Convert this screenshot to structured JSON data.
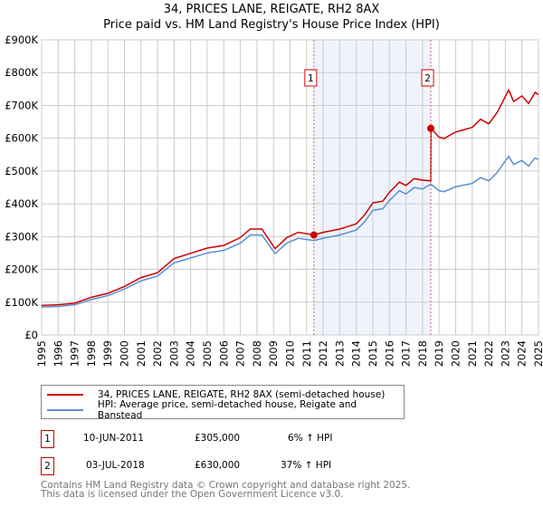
{
  "chart_data": {
    "type": "line",
    "title": "34, PRICES LANE, REIGATE, RH2 8AX",
    "subtitle": "Price paid vs. HM Land Registry's House Price Index (HPI)",
    "xlim": [
      1995,
      2025
    ],
    "ylim": [
      0,
      900000
    ],
    "yticks": [
      "£0",
      "£100K",
      "£200K",
      "£300K",
      "£400K",
      "£500K",
      "£600K",
      "£700K",
      "£800K",
      "£900K"
    ],
    "xticks": [
      "1995",
      "1996",
      "1997",
      "1998",
      "1999",
      "2000",
      "2001",
      "2002",
      "2003",
      "2004",
      "2005",
      "2006",
      "2007",
      "2008",
      "2009",
      "2010",
      "2011",
      "2012",
      "2013",
      "2014",
      "2015",
      "2016",
      "2017",
      "2018",
      "2019",
      "2020",
      "2021",
      "2022",
      "2023",
      "2024",
      "2025"
    ],
    "grid": true,
    "series": [
      {
        "name": "34, PRICES LANE, REIGATE, RH2 8AX (semi-detached house)",
        "color": "#cc0000",
        "x": [
          1995,
          1996,
          1997,
          1998,
          1999,
          2000,
          2001,
          2002,
          2003,
          2004,
          2005,
          2006,
          2007,
          2007.6,
          2008.3,
          2009.1,
          2009.8,
          2010.5,
          2011.44,
          2012,
          2013,
          2014,
          2014.5,
          2015,
          2015.6,
          2016,
          2016.6,
          2017,
          2017.5,
          2018,
          2018.5,
          2018.51,
          2019,
          2019.3,
          2020,
          2021,
          2021.5,
          2022,
          2022.5,
          2023.2,
          2023.5,
          2024,
          2024.4,
          2024.8,
          2025
        ],
        "y": [
          90000,
          92000,
          97000,
          115000,
          127000,
          148000,
          175000,
          190000,
          233000,
          249000,
          265000,
          273000,
          297000,
          323000,
          323000,
          263000,
          297000,
          313000,
          305000,
          313000,
          323000,
          339000,
          366000,
          403000,
          408000,
          435000,
          466000,
          456000,
          477000,
          472000,
          470000,
          630000,
          603000,
          599000,
          619000,
          633000,
          658000,
          644000,
          678000,
          747000,
          712000,
          729000,
          706000,
          740000,
          733000
        ]
      },
      {
        "name": "HPI: Average price, semi-detached house, Reigate and Banstead",
        "color": "#5b8fd4",
        "x": [
          1995,
          1996,
          1997,
          1998,
          1999,
          2000,
          2001,
          2002,
          2003,
          2004,
          2005,
          2006,
          2007,
          2007.6,
          2008.3,
          2009.1,
          2009.8,
          2010.5,
          2011.44,
          2012,
          2013,
          2014,
          2014.5,
          2015,
          2015.6,
          2016,
          2016.6,
          2017,
          2017.5,
          2018,
          2018.5,
          2019,
          2019.3,
          2020,
          2021,
          2021.5,
          2022,
          2022.5,
          2023.2,
          2023.5,
          2024,
          2024.4,
          2024.8,
          2025
        ],
        "y": [
          85000,
          87000,
          92000,
          108000,
          120000,
          140000,
          165000,
          180000,
          220000,
          235000,
          250000,
          258000,
          280000,
          305000,
          305000,
          248000,
          280000,
          295000,
          288000,
          295000,
          305000,
          320000,
          345000,
          380000,
          385000,
          410000,
          440000,
          430000,
          450000,
          445000,
          460000,
          440000,
          437000,
          452000,
          462000,
          480000,
          470000,
          495000,
          545000,
          520000,
          532000,
          515000,
          540000,
          535000
        ]
      }
    ],
    "annotations": [
      {
        "label": "1",
        "x": 2011.44,
        "y": 305000
      },
      {
        "label": "2",
        "x": 2018.5,
        "y": 630000
      }
    ],
    "shaded_range": [
      2011.44,
      2018.5
    ],
    "legend": "bottom"
  },
  "sales": [
    {
      "num": "1",
      "date": "10-JUN-2011",
      "price": "£305,000",
      "delta": "6% ↑ HPI"
    },
    {
      "num": "2",
      "date": "03-JUL-2018",
      "price": "£630,000",
      "delta": "37% ↑ HPI"
    }
  ],
  "footer": {
    "line1": "Contains HM Land Registry data © Crown copyright and database right 2025.",
    "line2": "This data is licensed under the Open Government Licence v3.0."
  }
}
